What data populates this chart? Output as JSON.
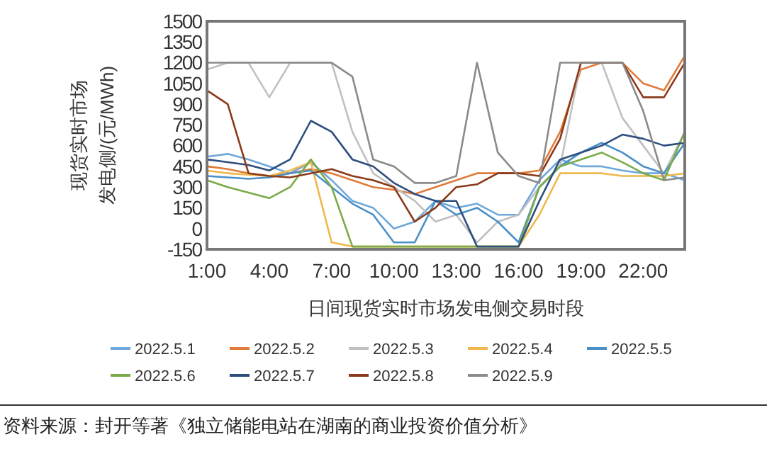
{
  "chart_data": {
    "type": "line",
    "xlabel": "日间现货实时市场发电侧交易时段",
    "ylabel": "现货实时市场发电侧/(元/MWh)",
    "x": [
      1,
      2,
      3,
      4,
      5,
      6,
      7,
      8,
      9,
      10,
      11,
      12,
      13,
      14,
      15,
      16,
      17,
      18,
      19,
      20,
      21,
      22,
      23,
      24
    ],
    "xlim": [
      1,
      24
    ],
    "xticks": [
      {
        "value": 1,
        "label": "1:00"
      },
      {
        "value": 4,
        "label": "4:00"
      },
      {
        "value": 7,
        "label": "7:00"
      },
      {
        "value": 10,
        "label": "10:00"
      },
      {
        "value": 13,
        "label": "13:00"
      },
      {
        "value": 16,
        "label": "16:00"
      },
      {
        "value": 19,
        "label": "19:00"
      },
      {
        "value": 22,
        "label": "22:00"
      }
    ],
    "ylim": [
      -150,
      1500
    ],
    "yticks": [
      -150,
      0,
      150,
      300,
      450,
      600,
      750,
      900,
      1050,
      1200,
      1350,
      1500
    ],
    "grid": false,
    "legend": "bottom",
    "marker": "none",
    "line_style": "solid",
    "series": [
      {
        "name": "2022.5.1",
        "color": "#6fa8dc",
        "values": [
          520,
          540,
          500,
          450,
          400,
          480,
          350,
          200,
          150,
          0,
          50,
          200,
          150,
          180,
          100,
          100,
          350,
          500,
          450,
          450,
          420,
          400,
          400,
          350
        ]
      },
      {
        "name": "2022.5.2",
        "color": "#e07b39",
        "values": [
          450,
          430,
          400,
          380,
          400,
          430,
          400,
          350,
          300,
          280,
          250,
          300,
          350,
          400,
          400,
          400,
          420,
          700,
          1150,
          1200,
          1200,
          1050,
          1000,
          1250
        ]
      },
      {
        "name": "2022.5.3",
        "color": "#c0c0c0",
        "values": [
          1150,
          1200,
          1200,
          950,
          1200,
          1200,
          1200,
          700,
          400,
          300,
          200,
          50,
          100,
          -100,
          50,
          100,
          300,
          450,
          1200,
          1200,
          800,
          600,
          400,
          700
        ]
      },
      {
        "name": "2022.5.4",
        "color": "#f0b84a",
        "values": [
          420,
          400,
          390,
          380,
          420,
          480,
          -100,
          -130,
          -130,
          -130,
          -130,
          -130,
          -130,
          -130,
          -130,
          -130,
          100,
          400,
          400,
          400,
          380,
          380,
          380,
          400
        ]
      },
      {
        "name": "2022.5.5",
        "color": "#4a90c8",
        "values": [
          380,
          370,
          360,
          370,
          400,
          420,
          300,
          180,
          100,
          -100,
          -100,
          200,
          100,
          150,
          50,
          -100,
          300,
          450,
          550,
          620,
          550,
          450,
          400,
          620
        ]
      },
      {
        "name": "2022.5.6",
        "color": "#7aab48",
        "values": [
          350,
          300,
          260,
          220,
          300,
          500,
          300,
          -130,
          -130,
          -130,
          -130,
          -130,
          -130,
          -130,
          -130,
          -130,
          300,
          450,
          500,
          550,
          480,
          400,
          350,
          700
        ]
      },
      {
        "name": "2022.5.7",
        "color": "#2e4e7e",
        "values": [
          500,
          480,
          460,
          420,
          500,
          780,
          700,
          500,
          450,
          330,
          250,
          200,
          200,
          -130,
          -130,
          -130,
          200,
          500,
          550,
          600,
          680,
          650,
          600,
          620
        ]
      },
      {
        "name": "2022.5.8",
        "color": "#8b3a1a",
        "values": [
          1000,
          900,
          400,
          380,
          370,
          400,
          430,
          380,
          350,
          300,
          50,
          150,
          300,
          320,
          400,
          400,
          380,
          650,
          1200,
          1200,
          1200,
          950,
          950,
          1200
        ]
      },
      {
        "name": "2022.5.9",
        "color": "#8a8a8a",
        "values": [
          1200,
          1200,
          1200,
          1200,
          1200,
          1200,
          1200,
          1100,
          500,
          450,
          330,
          330,
          380,
          1200,
          550,
          380,
          330,
          1200,
          1200,
          1200,
          1200,
          850,
          350,
          370
        ]
      }
    ],
    "annotations": [
      "资料来源：封开等著《独立储能电站在湖南的商业投资价值分析》"
    ]
  }
}
